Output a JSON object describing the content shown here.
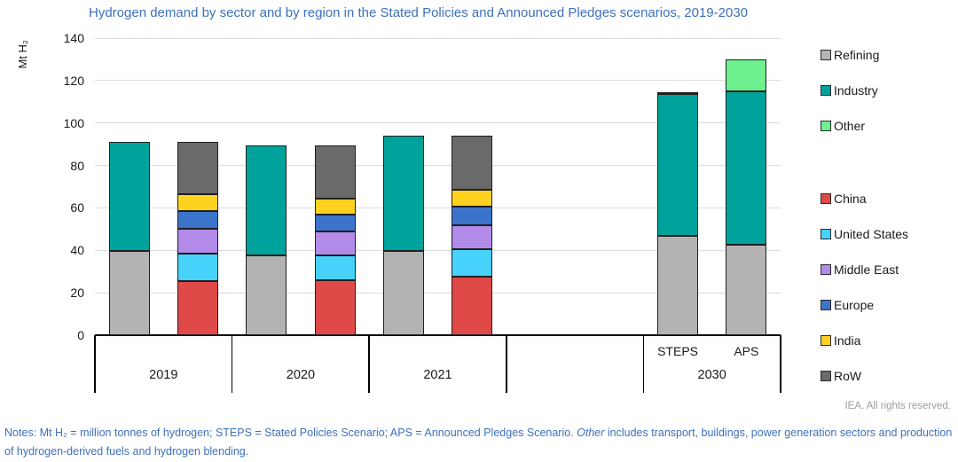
{
  "footer": {
    "rights": "IEA. All rights reserved."
  },
  "notes": {
    "part1": "Notes: Mt H₂ = million tonnes of hydrogen; STEPS = Stated Policies Scenario; APS = Announced Pledges Scenario. ",
    "italic": "Other",
    "part2": " includes transport, buildings, power generation sectors and production of hydrogen-derived fuels and hydrogen blending."
  },
  "legend": {
    "groups": [
      {
        "items": [
          "Refining",
          "Industry",
          "Other"
        ]
      },
      {
        "items": [
          "China",
          "United States",
          "Middle East",
          "Europe",
          "India",
          "RoW"
        ]
      }
    ]
  },
  "chart_data": {
    "type": "bar",
    "stacked": true,
    "title": "Hydrogen demand by sector and by region in the Stated Policies and Announced Pledges scenarios, 2019-2030",
    "ylabel": "Mt H₂",
    "xlabel": "",
    "ylim": [
      0,
      140
    ],
    "yticks": [
      0,
      20,
      40,
      60,
      80,
      100,
      120,
      140
    ],
    "grid": true,
    "legend_position": "right",
    "units": "Mt H2",
    "series_colors": {
      "Refining": "#b3b3b3",
      "Industry": "#00a39b",
      "Other": "#6df08e",
      "China": "#df4a49",
      "United States": "#47d2fb",
      "Middle East": "#b28ae8",
      "Europe": "#3c74cc",
      "India": "#ffd21f",
      "RoW": "#6a6a6a"
    },
    "groups": [
      {
        "label": "2019",
        "bars": [
          {
            "name": "2019-by-sector",
            "sublabel": "",
            "segments": [
              [
                "Refining",
                39.5
              ],
              [
                "Industry",
                51.5
              ]
            ]
          },
          {
            "name": "2019-by-region",
            "sublabel": "",
            "segments": [
              [
                "China",
                25.5
              ],
              [
                "United States",
                13
              ],
              [
                "Middle East",
                11.5
              ],
              [
                "Europe",
                8.5
              ],
              [
                "India",
                8
              ],
              [
                "RoW",
                24.5
              ]
            ]
          }
        ]
      },
      {
        "label": "2020",
        "bars": [
          {
            "name": "2020-by-sector",
            "sublabel": "",
            "segments": [
              [
                "Refining",
                37.5
              ],
              [
                "Industry",
                52
              ]
            ]
          },
          {
            "name": "2020-by-region",
            "sublabel": "",
            "segments": [
              [
                "China",
                26
              ],
              [
                "United States",
                11.5
              ],
              [
                "Middle East",
                11.5
              ],
              [
                "Europe",
                8
              ],
              [
                "India",
                7.5
              ],
              [
                "RoW",
                25
              ]
            ]
          }
        ]
      },
      {
        "label": "2021",
        "bars": [
          {
            "name": "2021-by-sector",
            "sublabel": "",
            "segments": [
              [
                "Refining",
                39.5
              ],
              [
                "Industry",
                54.5
              ]
            ]
          },
          {
            "name": "2021-by-region",
            "sublabel": "",
            "segments": [
              [
                "China",
                27.5
              ],
              [
                "United States",
                13
              ],
              [
                "Middle East",
                11.5
              ],
              [
                "Europe",
                8.5
              ],
              [
                "India",
                8
              ],
              [
                "RoW",
                25.5
              ]
            ]
          }
        ]
      },
      {
        "label": "",
        "bars": []
      },
      {
        "label": "2030",
        "bars": [
          {
            "name": "2030-steps",
            "sublabel": "STEPS",
            "segments": [
              [
                "Refining",
                47
              ],
              [
                "Industry",
                66.5
              ],
              [
                "Other",
                1
              ]
            ]
          },
          {
            "name": "2030-aps",
            "sublabel": "APS",
            "segments": [
              [
                "Refining",
                42.5
              ],
              [
                "Industry",
                72.5
              ],
              [
                "Other",
                15
              ]
            ]
          }
        ]
      }
    ]
  }
}
